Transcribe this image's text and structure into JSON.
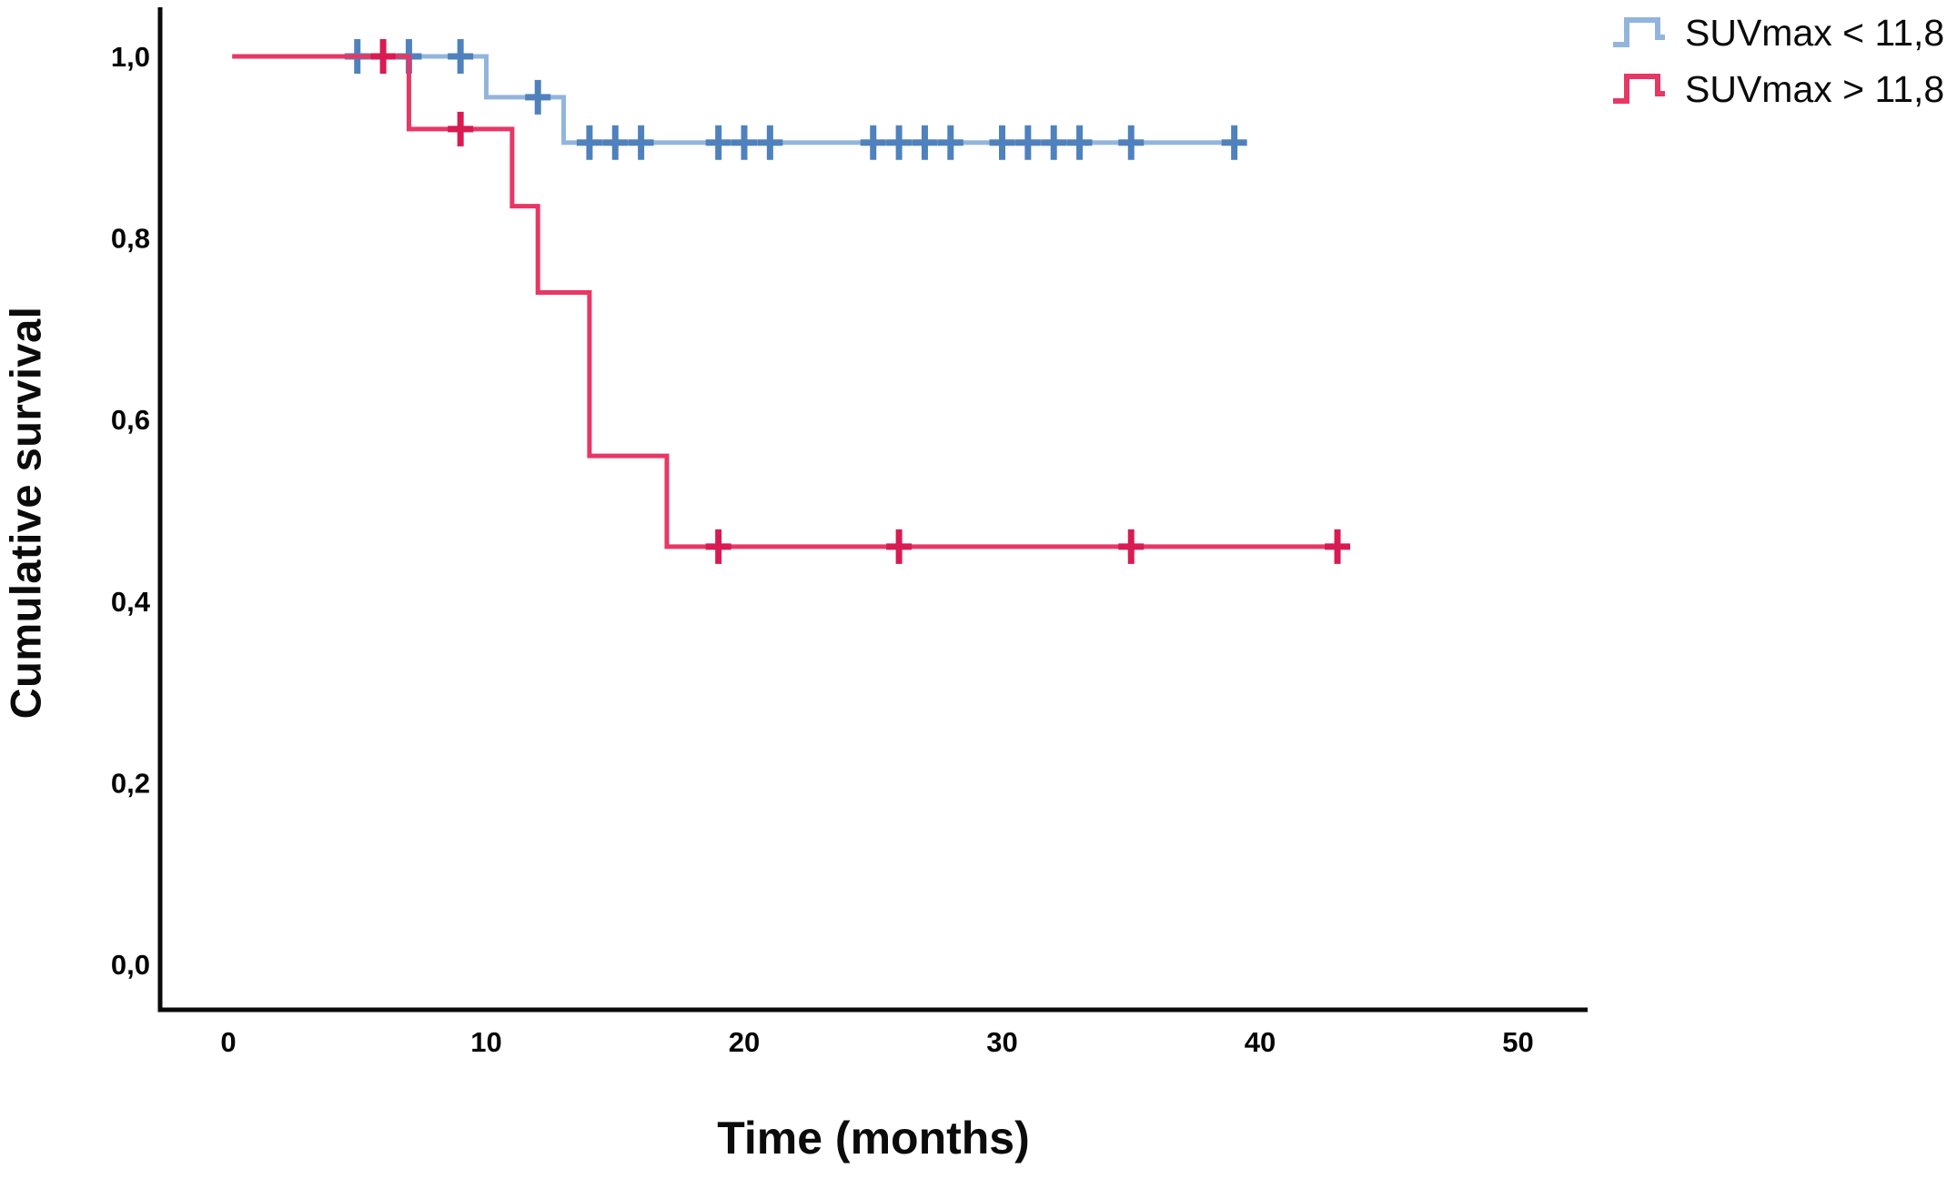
{
  "figure": {
    "y_axis_title": "Cumulative survival",
    "x_axis_title": "Time (months)"
  },
  "legend": {
    "items": [
      {
        "label": "SUVmax < 11,8",
        "color": "#92b5dd"
      },
      {
        "label": "SUVmax > 11,8",
        "color": "#e73765"
      }
    ]
  },
  "chart_data": {
    "type": "line",
    "subtype": "kaplan_meier_step",
    "title": "",
    "xlabel": "Time (months)",
    "ylabel": "Cumulative survival",
    "xlim": [
      0,
      55
    ],
    "ylim": [
      0,
      1.0
    ],
    "grid": false,
    "legend_position": "top-right",
    "decimal_separator": ",",
    "x_ticks": [
      {
        "value": 0,
        "label": "0"
      },
      {
        "value": 10,
        "label": "10"
      },
      {
        "value": 20,
        "label": "20"
      },
      {
        "value": 30,
        "label": "30"
      },
      {
        "value": 40,
        "label": "40"
      },
      {
        "value": 50,
        "label": "50"
      }
    ],
    "y_ticks": [
      {
        "value": 1.0,
        "label": "1,0"
      },
      {
        "value": 0.8,
        "label": "0,8"
      },
      {
        "value": 0.6,
        "label": "0,6"
      },
      {
        "value": 0.4,
        "label": "0,4"
      },
      {
        "value": 0.2,
        "label": "0,2"
      },
      {
        "value": 0.0,
        "label": "0,0"
      }
    ],
    "series": [
      {
        "name": "SUVmax < 11,8",
        "line_color": "#92b5dd",
        "censor_color": "#4f81bd",
        "step_points": [
          [
            0.15,
            1.0
          ],
          [
            10,
            0.955
          ],
          [
            13,
            0.905
          ]
        ],
        "end_time": 39.3,
        "censor_marks": [
          [
            5,
            1.0
          ],
          [
            7,
            1.0
          ],
          [
            9,
            1.0
          ],
          [
            12,
            0.955
          ],
          [
            14,
            0.905
          ],
          [
            15,
            0.905
          ],
          [
            16,
            0.905
          ],
          [
            19,
            0.905
          ],
          [
            20,
            0.905
          ],
          [
            21,
            0.905
          ],
          [
            25,
            0.905
          ],
          [
            26,
            0.905
          ],
          [
            27,
            0.905
          ],
          [
            28,
            0.905
          ],
          [
            30,
            0.905
          ],
          [
            31,
            0.905
          ],
          [
            32,
            0.905
          ],
          [
            33,
            0.905
          ],
          [
            35,
            0.905
          ],
          [
            39,
            0.905
          ]
        ]
      },
      {
        "name": "SUVmax > 11,8",
        "line_color": "#e73765",
        "censor_color": "#d81b52",
        "step_points": [
          [
            0.15,
            1.0
          ],
          [
            7,
            0.92
          ],
          [
            11,
            0.835
          ],
          [
            12,
            0.74
          ],
          [
            14,
            0.56
          ],
          [
            17,
            0.46
          ]
        ],
        "end_time": 43.2,
        "censor_marks": [
          [
            6,
            1.0
          ],
          [
            9,
            0.92
          ],
          [
            19,
            0.46
          ],
          [
            26,
            0.46
          ],
          [
            35,
            0.46
          ],
          [
            43,
            0.46
          ]
        ]
      }
    ]
  }
}
